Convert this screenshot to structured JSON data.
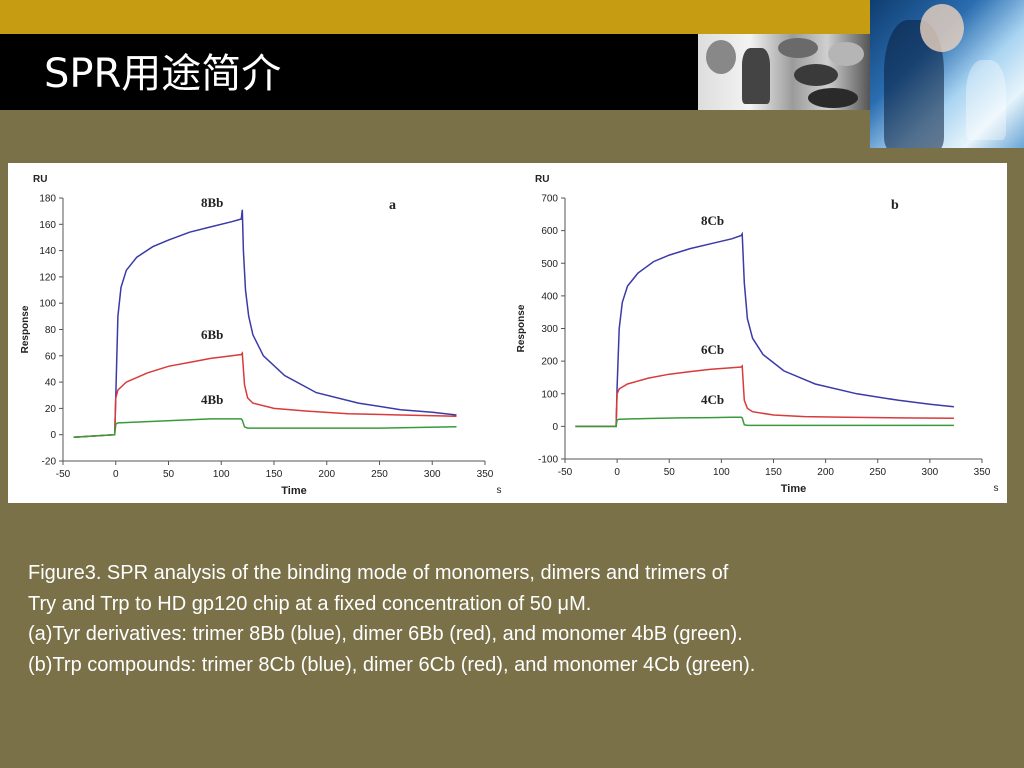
{
  "slide": {
    "title": "SPR用途简介",
    "caption_lines": [
      "Figure3. SPR analysis of the binding mode of monomers, dimers and trimers of",
      "Try and Trp to HD gp120 chip at a fixed concentration of 50 μM.",
      "(a)Tyr derivatives: trimer 8Bb (blue), dimer 6Bb (red), and monomer 4bB (green).",
      "(b)Trp compounds: trimer 8Cb (blue), dimer 6Cb (red), and monomer 4Cb (green)."
    ]
  },
  "chart_data": [
    {
      "type": "line",
      "panel_label": "a",
      "ylabel_unit": "RU",
      "ylabel": "Response",
      "xlabel": "Time",
      "xlabel_unit": "s",
      "xlim": [
        -50,
        350
      ],
      "ylim": [
        -20,
        180
      ],
      "xticks": [
        -50,
        0,
        50,
        100,
        150,
        200,
        250,
        300,
        350
      ],
      "yticks": [
        -20,
        0,
        20,
        40,
        60,
        80,
        100,
        120,
        140,
        160,
        180
      ],
      "series": [
        {
          "name": "8Bb",
          "color": "#3a3aa8",
          "x": [
            -40,
            -1,
            0,
            2,
            5,
            10,
            20,
            35,
            50,
            70,
            90,
            110,
            119,
            120,
            121,
            123,
            126,
            130,
            140,
            160,
            190,
            230,
            270,
            300,
            323
          ],
          "y": [
            -2,
            0,
            30,
            90,
            112,
            125,
            135,
            143,
            148,
            154,
            158,
            162,
            164,
            171,
            140,
            110,
            90,
            76,
            60,
            45,
            32,
            24,
            19,
            17,
            15
          ]
        },
        {
          "name": "6Bb",
          "color": "#d93a3a",
          "x": [
            -40,
            -1,
            0,
            2,
            10,
            30,
            50,
            70,
            90,
            110,
            119,
            120,
            122,
            125,
            130,
            150,
            180,
            220,
            270,
            323
          ],
          "y": [
            -2,
            0,
            28,
            34,
            40,
            47,
            52,
            55,
            58,
            60,
            61,
            62,
            38,
            28,
            24,
            20,
            18,
            16,
            15,
            14
          ]
        },
        {
          "name": "4Bb",
          "color": "#3a9a3a",
          "x": [
            -40,
            -1,
            0,
            2,
            30,
            60,
            90,
            110,
            119,
            120,
            122,
            125,
            150,
            200,
            250,
            323
          ],
          "y": [
            -2,
            0,
            8,
            9,
            10,
            11,
            12,
            12,
            12,
            11,
            6,
            5,
            5,
            5,
            5,
            6
          ]
        }
      ]
    },
    {
      "type": "line",
      "panel_label": "b",
      "ylabel_unit": "RU",
      "ylabel": "Response",
      "xlabel": "Time",
      "xlabel_unit": "s",
      "xlim": [
        -50,
        350
      ],
      "ylim": [
        -100,
        700
      ],
      "xticks": [
        -50,
        0,
        50,
        100,
        150,
        200,
        250,
        300,
        350
      ],
      "yticks": [
        -100,
        0,
        100,
        200,
        300,
        400,
        500,
        600,
        700
      ],
      "series": [
        {
          "name": "8Cb",
          "color": "#3a3aa8",
          "x": [
            -40,
            -1,
            0,
            2,
            5,
            10,
            20,
            35,
            50,
            70,
            90,
            110,
            119,
            120,
            122,
            125,
            130,
            140,
            160,
            190,
            230,
            270,
            300,
            323
          ],
          "y": [
            0,
            0,
            120,
            300,
            380,
            430,
            470,
            505,
            525,
            545,
            560,
            575,
            585,
            590,
            440,
            330,
            270,
            220,
            170,
            130,
            100,
            80,
            68,
            60
          ]
        },
        {
          "name": "6Cb",
          "color": "#d93a3a",
          "x": [
            -40,
            -1,
            0,
            2,
            10,
            30,
            50,
            70,
            90,
            110,
            119,
            120,
            122,
            125,
            130,
            150,
            180,
            220,
            270,
            323
          ],
          "y": [
            0,
            0,
            100,
            115,
            130,
            148,
            160,
            168,
            175,
            180,
            182,
            185,
            80,
            55,
            45,
            35,
            30,
            28,
            26,
            25
          ]
        },
        {
          "name": "4Cb",
          "color": "#3a9a3a",
          "x": [
            -40,
            -1,
            0,
            2,
            30,
            60,
            90,
            110,
            119,
            120,
            122,
            125,
            150,
            200,
            250,
            323
          ],
          "y": [
            0,
            0,
            20,
            22,
            24,
            26,
            27,
            28,
            28,
            26,
            5,
            3,
            3,
            3,
            3,
            3
          ]
        }
      ]
    }
  ]
}
